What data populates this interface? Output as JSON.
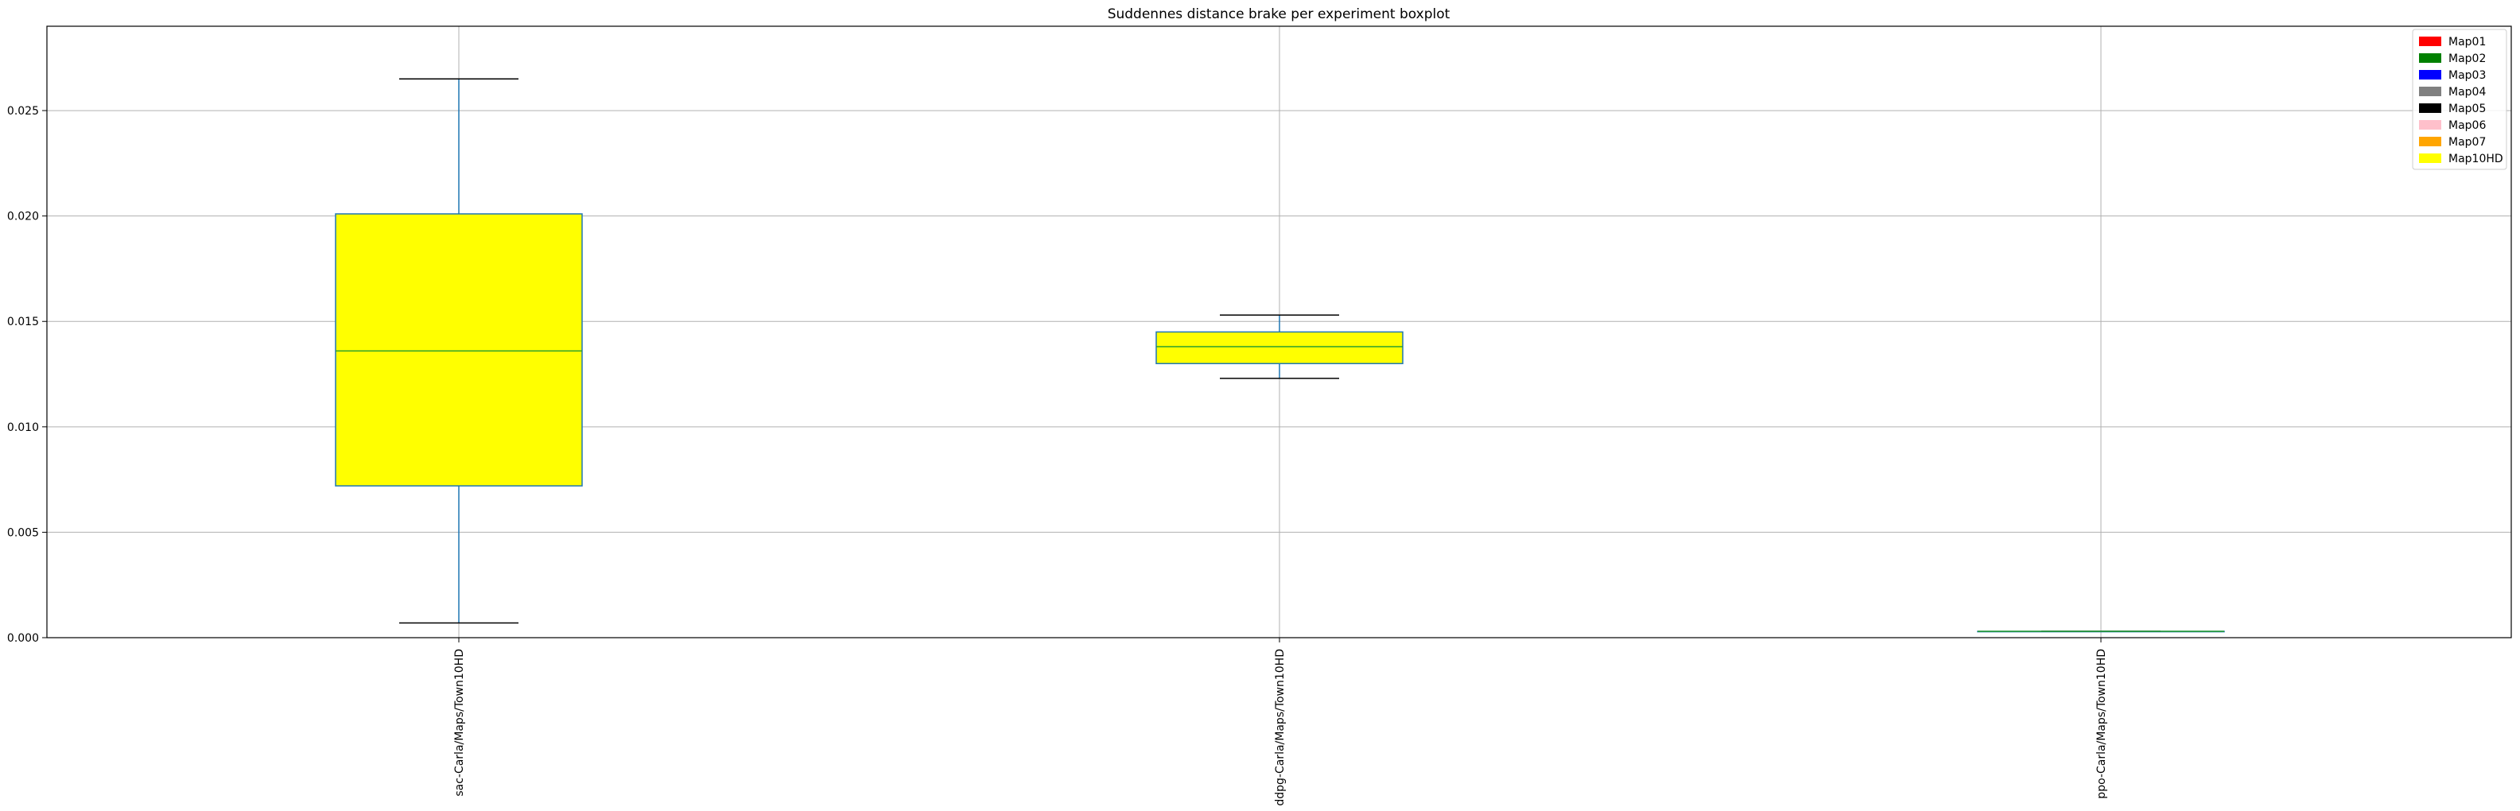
{
  "chart_data": {
    "type": "box",
    "title": "Suddennes distance brake per experiment boxplot",
    "xlabel": "",
    "ylabel": "",
    "ylim": [
      0,
      0.029
    ],
    "yticks": [
      0.0,
      0.005,
      0.01,
      0.015,
      0.02,
      0.025
    ],
    "ytick_labels": [
      "0.000",
      "0.005",
      "0.010",
      "0.015",
      "0.020",
      "0.025"
    ],
    "grid": true,
    "legend_position": "top-right",
    "categories": [
      "sac-Carla/Maps/Town10HD",
      "ddpg-Carla/Maps/Town10HD",
      "ppo-Carla/Maps/Town10HD"
    ],
    "boxes": [
      {
        "category": "sac-Carla/Maps/Town10HD",
        "whisker_low": 0.0007,
        "q1": 0.0072,
        "median": 0.0136,
        "q3": 0.0201,
        "whisker_high": 0.0265,
        "fill": "#ffff00"
      },
      {
        "category": "ddpg-Carla/Maps/Town10HD",
        "whisker_low": 0.0123,
        "q1": 0.013,
        "median": 0.0138,
        "q3": 0.0145,
        "whisker_high": 0.0153,
        "fill": "#ffff00"
      },
      {
        "category": "ppo-Carla/Maps/Town10HD",
        "whisker_low": 0.0003,
        "q1": 0.0003,
        "median": 0.0003,
        "q3": 0.0003,
        "whisker_high": 0.0003,
        "fill": "#ffff00"
      }
    ],
    "box_edge_color": "#1f77b4",
    "median_color": "#2ca02c",
    "whisker_cap_color": "#000000",
    "legend": [
      {
        "label": "Map01",
        "color": "#ff0000"
      },
      {
        "label": "Map02",
        "color": "#008000"
      },
      {
        "label": "Map03",
        "color": "#0000ff"
      },
      {
        "label": "Map04",
        "color": "#808080"
      },
      {
        "label": "Map05",
        "color": "#000000"
      },
      {
        "label": "Map06",
        "color": "#ffc0cb"
      },
      {
        "label": "Map07",
        "color": "#ffa500"
      },
      {
        "label": "Map10HD",
        "color": "#ffff00"
      }
    ]
  }
}
